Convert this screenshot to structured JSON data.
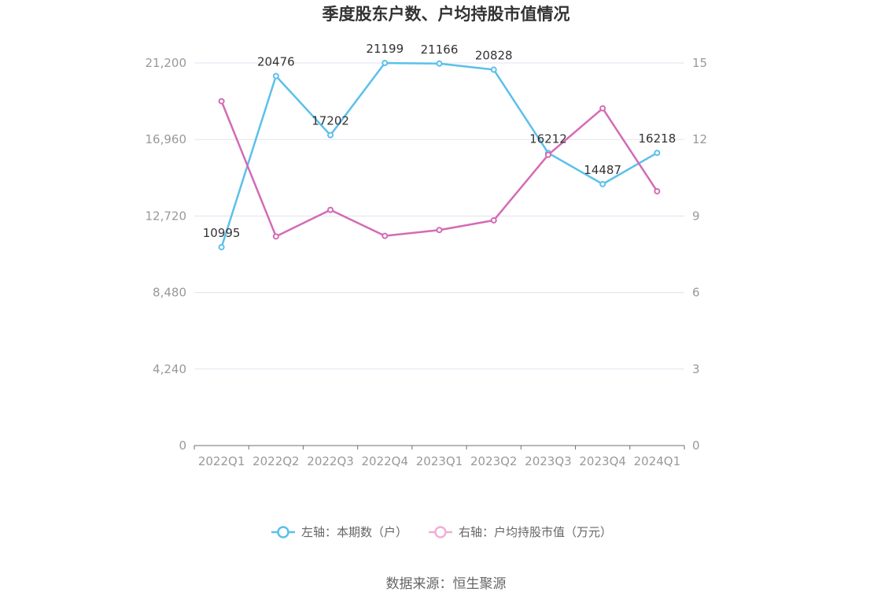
{
  "chart_data": {
    "type": "line",
    "title": "季度股东户数、户均持股市值情况",
    "categories": [
      "2022Q1",
      "2022Q2",
      "2022Q3",
      "2022Q4",
      "2023Q1",
      "2023Q2",
      "2023Q3",
      "2023Q4",
      "2024Q1"
    ],
    "y_left": {
      "ticks": [
        "0",
        "4,240",
        "8,480",
        "12,720",
        "16,960",
        "21,200"
      ],
      "ylim": [
        0,
        21200
      ]
    },
    "y_right": {
      "ticks": [
        "0",
        "3",
        "6",
        "9",
        "12",
        "15"
      ],
      "ylim": [
        0,
        15
      ]
    },
    "grid": true,
    "legend_position": "bottom",
    "series": [
      {
        "name": "左轴：本期数（户）",
        "axis": "left",
        "color": "#5bc0eb",
        "values": [
          10995,
          20476,
          17202,
          21199,
          21166,
          20828,
          16212,
          14487,
          16218
        ],
        "labels": [
          "10995",
          "20476",
          "17202",
          "21199",
          "21166",
          "20828",
          "16212",
          "14487",
          "16218"
        ]
      },
      {
        "name": "右轴：户均持股市值（万元）",
        "axis": "right",
        "color": "#d46bb4",
        "values": [
          13.5,
          8.2,
          9.24,
          8.22,
          8.45,
          8.83,
          11.4,
          13.22,
          9.97
        ]
      }
    ]
  },
  "footer": {
    "source": "数据来源：恒生聚源"
  }
}
